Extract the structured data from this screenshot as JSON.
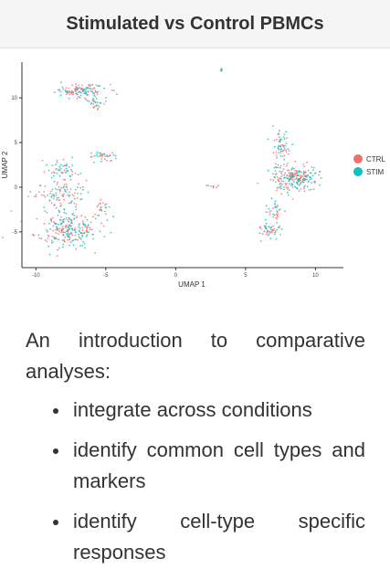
{
  "header": {
    "title": "Stimulated vs Control PBMCs"
  },
  "chart_data": {
    "type": "scatter",
    "title": "",
    "xlabel": "UMAP 1",
    "ylabel": "UMAP 2",
    "xlim": [
      -11,
      12
    ],
    "ylim": [
      -9,
      14
    ],
    "xticks": [
      -10,
      -5,
      0,
      5,
      10
    ],
    "yticks": [
      -5,
      0,
      5,
      10
    ],
    "grid": false,
    "legend": "right",
    "series": [
      {
        "name": "CTRL",
        "color": "#f0706a"
      },
      {
        "name": "STIM",
        "color": "#12bfc0"
      }
    ],
    "clusters": [
      {
        "cx": -6.8,
        "cy": 10.8,
        "sx": 1.5,
        "sy": 0.6,
        "n": 120
      },
      {
        "cx": -5.8,
        "cy": 9.5,
        "sx": 0.5,
        "sy": 0.8,
        "n": 30
      },
      {
        "cx": -8.0,
        "cy": 2.0,
        "sx": 1.0,
        "sy": 0.8,
        "n": 50
      },
      {
        "cx": -8.5,
        "cy": -1.0,
        "sx": 1.6,
        "sy": 1.8,
        "n": 110
      },
      {
        "cx": -7.8,
        "cy": -4.8,
        "sx": 1.9,
        "sy": 1.6,
        "n": 230
      },
      {
        "cx": -5.3,
        "cy": 3.6,
        "sx": 0.8,
        "sy": 0.4,
        "n": 35
      },
      {
        "cx": -5.2,
        "cy": -2.5,
        "sx": 0.6,
        "sy": 0.9,
        "n": 25
      },
      {
        "cx": 3.3,
        "cy": 13.1,
        "sx": 0.15,
        "sy": 0.15,
        "n": 6
      },
      {
        "cx": 2.5,
        "cy": 0.1,
        "sx": 0.6,
        "sy": 0.1,
        "n": 8
      },
      {
        "cx": 8.5,
        "cy": 1.0,
        "sx": 1.4,
        "sy": 1.2,
        "n": 230
      },
      {
        "cx": 7.6,
        "cy": 4.5,
        "sx": 0.5,
        "sy": 1.6,
        "n": 60
      },
      {
        "cx": 6.7,
        "cy": -4.8,
        "sx": 0.8,
        "sy": 0.7,
        "n": 50
      },
      {
        "cx": 7.2,
        "cy": -2.6,
        "sx": 0.5,
        "sy": 1.0,
        "n": 30
      }
    ]
  },
  "content": {
    "intro": "An introduction to comparative analyses:",
    "bullets": [
      "integrate across conditions",
      "identify common cell types and markers",
      "identify cell-type specific responses"
    ]
  }
}
